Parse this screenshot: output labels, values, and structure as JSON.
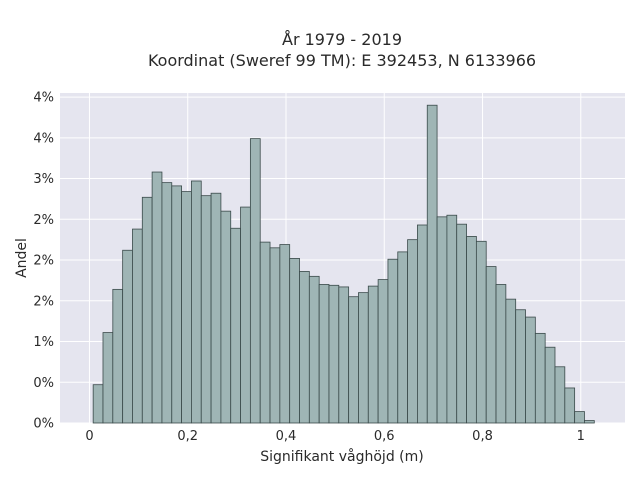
{
  "chart_data": {
    "type": "bar",
    "title_line1": "År 1979 - 2019",
    "title_line2": "Koordinat (Sweref 99 TM): E 392453, N 6133966",
    "xlabel": "Signifikant våghöjd (m)",
    "ylabel": "Andel",
    "xlim": [
      -0.06,
      1.09
    ],
    "ylim": [
      0,
      4.05
    ],
    "grid": true,
    "x_ticks": [
      {
        "value": 0,
        "label": "0"
      },
      {
        "value": 0.2,
        "label": "0,2"
      },
      {
        "value": 0.4,
        "label": "0,4"
      },
      {
        "value": 0.6,
        "label": "0,6"
      },
      {
        "value": 0.8,
        "label": "0,8"
      },
      {
        "value": 1.0,
        "label": "1"
      }
    ],
    "y_ticks": [
      {
        "value": 0,
        "label": "0%"
      },
      {
        "value": 0.5,
        "label": "0%"
      },
      {
        "value": 1.0,
        "label": "1%"
      },
      {
        "value": 1.5,
        "label": "2%"
      },
      {
        "value": 2.0,
        "label": "2%"
      },
      {
        "value": 2.5,
        "label": "2%"
      },
      {
        "value": 3.0,
        "label": "3%"
      },
      {
        "value": 3.5,
        "label": "4%"
      },
      {
        "value": 4.0,
        "label": "4%"
      }
    ],
    "bin_width": 0.02,
    "bin_start": 0.0075,
    "values": [
      0.47,
      1.11,
      1.64,
      2.12,
      2.38,
      2.77,
      3.08,
      2.95,
      2.91,
      2.84,
      2.97,
      2.79,
      2.82,
      2.6,
      2.39,
      2.65,
      3.49,
      2.22,
      2.15,
      2.19,
      2.02,
      1.86,
      1.8,
      1.7,
      1.69,
      1.67,
      1.55,
      1.6,
      1.68,
      1.76,
      2.01,
      2.1,
      2.25,
      2.43,
      3.9,
      2.53,
      2.55,
      2.44,
      2.29,
      2.23,
      1.92,
      1.7,
      1.52,
      1.39,
      1.3,
      1.1,
      0.93,
      0.69,
      0.43,
      0.14,
      0.03
    ],
    "colors": {
      "bar_fill": "#9fb5b5",
      "bar_stroke": "#3a4a4a",
      "plot_bg": "#e5e5ef",
      "grid": "#ffffff"
    }
  }
}
